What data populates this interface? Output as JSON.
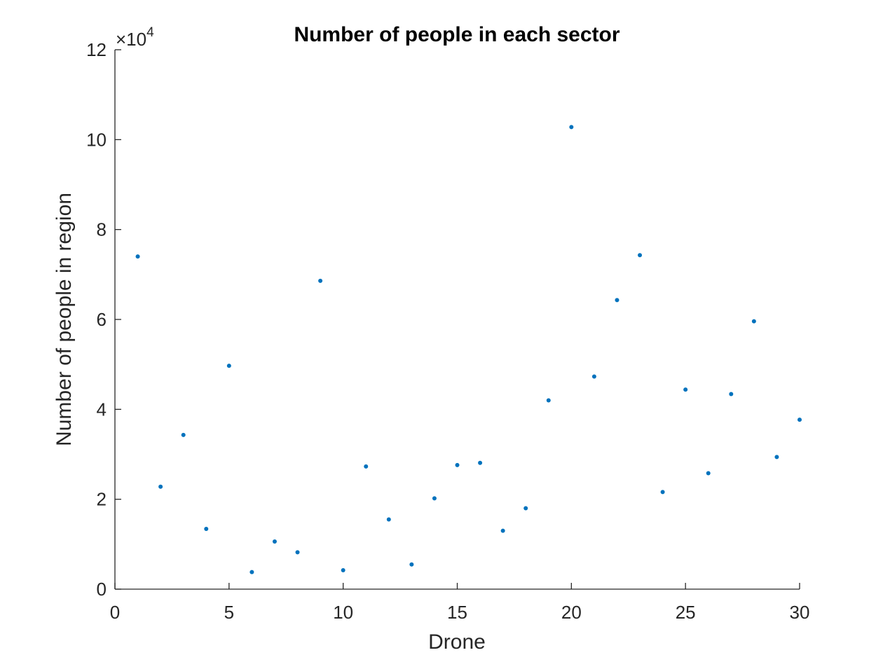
{
  "chart_data": {
    "type": "scatter",
    "title": "Number of people in each sector",
    "xlabel": "Drone",
    "ylabel": "Number of people in region",
    "y_exponent_label": "×10",
    "y_exponent_power": "4",
    "xlim": [
      0,
      30
    ],
    "ylim": [
      0,
      12
    ],
    "x_ticks": [
      0,
      5,
      10,
      15,
      20,
      25,
      30
    ],
    "y_ticks": [
      0,
      2,
      4,
      6,
      8,
      10,
      12
    ],
    "grid": false,
    "legend": "none",
    "marker_color": "#0072BD",
    "series": [
      {
        "x": [
          1,
          2,
          3,
          4,
          5,
          6,
          7,
          8,
          9,
          10,
          11,
          12,
          13,
          14,
          15,
          16,
          17,
          18,
          19,
          20,
          21,
          22,
          23,
          24,
          25,
          26,
          27,
          28,
          29,
          30
        ],
        "values": [
          7.4,
          2.28,
          3.43,
          1.34,
          4.97,
          0.38,
          1.06,
          0.82,
          6.86,
          0.42,
          2.73,
          1.55,
          0.55,
          2.02,
          2.76,
          2.81,
          1.3,
          1.8,
          4.2,
          10.28,
          4.73,
          6.43,
          7.43,
          2.16,
          4.44,
          2.58,
          4.34,
          5.96,
          2.94,
          3.77
        ]
      }
    ]
  }
}
